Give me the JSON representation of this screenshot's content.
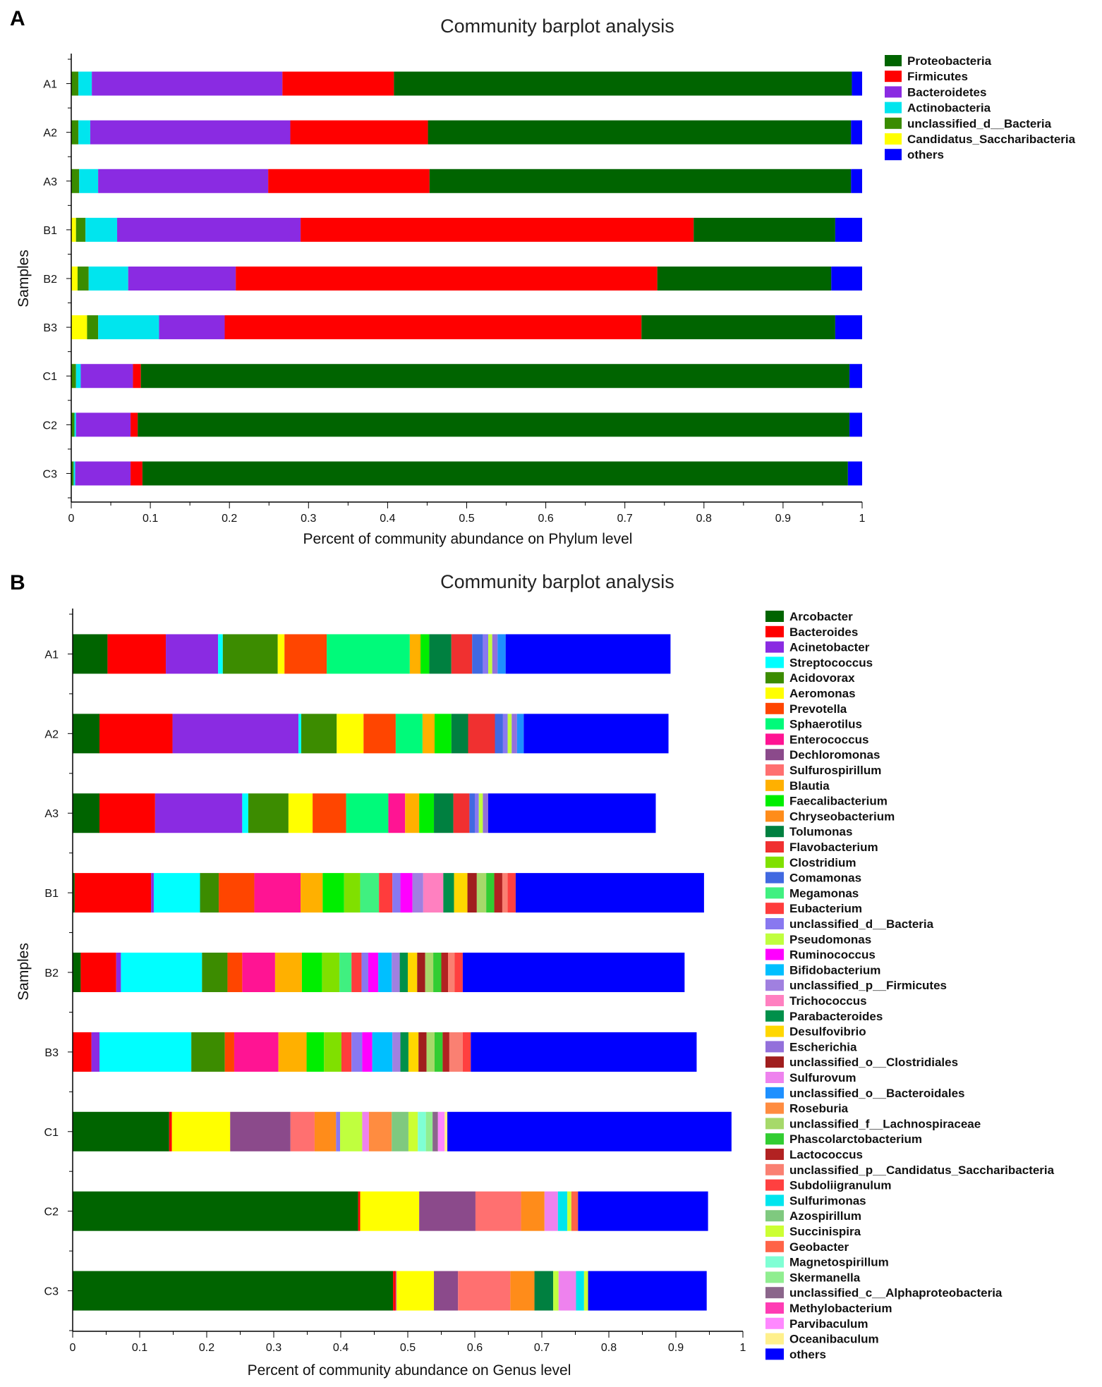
{
  "chart_data": [
    {
      "type": "bar",
      "orientation": "horizontal",
      "stacked": true,
      "panel": "A",
      "title": "Community barplot analysis",
      "xlabel": "Percent of community abundance on Phylum level",
      "ylabel": "Samples",
      "xlim": [
        0,
        1
      ],
      "xticks": [
        "0",
        "0.1",
        "0.2",
        "0.3",
        "0.4",
        "0.5",
        "0.6",
        "0.7",
        "0.8",
        "0.9",
        "1"
      ],
      "categories": [
        "A1",
        "A2",
        "A3",
        "B1",
        "B2",
        "B3",
        "C1",
        "C2",
        "C3"
      ],
      "series": [
        {
          "name": "Candidatus_Saccharibacteria",
          "color": "#FFFF00",
          "values": [
            0.0,
            0.0,
            0.0,
            0.006,
            0.008,
            0.02,
            0.0,
            0.0,
            0.0
          ]
        },
        {
          "name": "unclassified_d__Bacteria",
          "color": "#3A8C00",
          "values": [
            0.009,
            0.009,
            0.01,
            0.012,
            0.014,
            0.014,
            0.006,
            0.004,
            0.003
          ]
        },
        {
          "name": "Actinobacteria",
          "color": "#00E5EE",
          "values": [
            0.017,
            0.015,
            0.024,
            0.04,
            0.05,
            0.077,
            0.006,
            0.002,
            0.002
          ]
        },
        {
          "name": "Bacteroidetes",
          "color": "#8A2BE2",
          "values": [
            0.241,
            0.253,
            0.215,
            0.232,
            0.136,
            0.083,
            0.066,
            0.069,
            0.07
          ]
        },
        {
          "name": "Firmicutes",
          "color": "#FF0000",
          "values": [
            0.141,
            0.174,
            0.204,
            0.497,
            0.533,
            0.527,
            0.01,
            0.009,
            0.015
          ]
        },
        {
          "name": "Proteobacteria",
          "color": "#006400",
          "values": [
            0.579,
            0.535,
            0.533,
            0.179,
            0.22,
            0.245,
            0.896,
            0.9,
            0.892
          ]
        },
        {
          "name": "others",
          "color": "#0000FF",
          "values": [
            0.013,
            0.014,
            0.014,
            0.034,
            0.039,
            0.034,
            0.016,
            0.016,
            0.018
          ]
        }
      ],
      "legend": [
        "Proteobacteria",
        "Firmicutes",
        "Bacteroidetes",
        "Actinobacteria",
        "unclassified_d__Bacteria",
        "Candidatus_Saccharibacteria",
        "others"
      ],
      "legend_position": "right"
    },
    {
      "type": "bar",
      "orientation": "horizontal",
      "stacked": true,
      "panel": "B",
      "title": "Community barplot analysis",
      "xlabel": "Percent of community abundance on Genus level",
      "ylabel": "Samples",
      "xlim": [
        0,
        1
      ],
      "xticks": [
        "0",
        "0.1",
        "0.2",
        "0.3",
        "0.4",
        "0.5",
        "0.6",
        "0.7",
        "0.8",
        "0.9",
        "1"
      ],
      "categories": [
        "A1",
        "A2",
        "A3",
        "B1",
        "B2",
        "B3",
        "C1",
        "C2",
        "C3"
      ],
      "series": [
        {
          "name": "Arcobacter",
          "color": "#006400",
          "values": [
            0.052,
            0.04,
            0.04,
            0.003,
            0.012,
            0.0,
            0.144,
            0.426,
            0.478
          ]
        },
        {
          "name": "Bacteroides",
          "color": "#FF0000",
          "values": [
            0.087,
            0.109,
            0.083,
            0.114,
            0.053,
            0.028,
            0.004,
            0.003,
            0.004
          ]
        },
        {
          "name": "Acinetobacter",
          "color": "#8A2BE2",
          "values": [
            0.078,
            0.188,
            0.13,
            0.004,
            0.007,
            0.012,
            0.0,
            0.0,
            0.001
          ]
        },
        {
          "name": "Streptococcus",
          "color": "#00FFFF",
          "values": [
            0.007,
            0.004,
            0.009,
            0.069,
            0.121,
            0.137,
            0.0,
            0.0,
            0.0
          ]
        },
        {
          "name": "Acidovorax",
          "color": "#3C8C00",
          "values": [
            0.082,
            0.053,
            0.06,
            0.028,
            0.038,
            0.05,
            0.0,
            0.0,
            0.0
          ]
        },
        {
          "name": "Aeromonas",
          "color": "#FFFF00",
          "values": [
            0.01,
            0.04,
            0.036,
            0.0,
            0.0,
            0.0,
            0.087,
            0.088,
            0.056
          ]
        },
        {
          "name": "Prevotella",
          "color": "#FF4500",
          "values": [
            0.063,
            0.048,
            0.05,
            0.053,
            0.022,
            0.014,
            0.0,
            0.0,
            0.0
          ]
        },
        {
          "name": "Sphaerotilus",
          "color": "#00FA7A",
          "values": [
            0.124,
            0.04,
            0.063,
            0.0,
            0.0,
            0.0,
            0.0,
            0.0,
            0.0
          ]
        },
        {
          "name": "Enterococcus",
          "color": "#FF1493",
          "values": [
            0.0,
            0.0,
            0.025,
            0.069,
            0.049,
            0.066,
            0.0,
            0.0,
            0.0
          ]
        },
        {
          "name": "Dechloromonas",
          "color": "#8B4A8B",
          "values": [
            0.0,
            0.0,
            0.0,
            0.0,
            0.0,
            0.0,
            0.09,
            0.084,
            0.036
          ]
        },
        {
          "name": "Sulfurospirillum",
          "color": "#FF7070",
          "values": [
            0.0,
            0.0,
            0.0,
            0.0,
            0.0,
            0.0,
            0.036,
            0.068,
            0.078
          ]
        },
        {
          "name": "Blautia",
          "color": "#FFB000",
          "values": [
            0.016,
            0.018,
            0.021,
            0.033,
            0.04,
            0.042,
            0.0,
            0.0,
            0.0
          ]
        },
        {
          "name": "Faecalibacterium",
          "color": "#00EE00",
          "values": [
            0.013,
            0.025,
            0.022,
            0.032,
            0.03,
            0.026,
            0.0,
            0.0,
            0.0
          ]
        },
        {
          "name": "Chryseobacterium",
          "color": "#FF8C1A",
          "values": [
            0.0,
            0.0,
            0.0,
            0.0,
            0.0,
            0.0,
            0.032,
            0.035,
            0.036
          ]
        },
        {
          "name": "Tolumonas",
          "color": "#008040",
          "values": [
            0.033,
            0.025,
            0.029,
            0.0,
            0.0,
            0.0,
            0.0,
            0.0,
            0.028
          ]
        },
        {
          "name": "Flavobacterium",
          "color": "#F03030",
          "values": [
            0.031,
            0.04,
            0.024,
            0.0,
            0.0,
            0.0,
            0.0,
            0.0,
            0.0
          ]
        },
        {
          "name": "Clostridium",
          "color": "#80E000",
          "values": [
            0.0,
            0.0,
            0.0,
            0.024,
            0.026,
            0.026,
            0.0,
            0.0,
            0.0
          ]
        },
        {
          "name": "Comamonas",
          "color": "#4169E1",
          "values": [
            0.016,
            0.012,
            0.008,
            0.0,
            0.0,
            0.0,
            0.0,
            0.0,
            0.0
          ]
        },
        {
          "name": "Megamonas",
          "color": "#40F080",
          "values": [
            0.0,
            0.0,
            0.0,
            0.028,
            0.018,
            0.0,
            0.0,
            0.0,
            0.0
          ]
        },
        {
          "name": "Eubacterium",
          "color": "#FF3C3C",
          "values": [
            0.0,
            0.0,
            0.0,
            0.02,
            0.015,
            0.015,
            0.0,
            0.0,
            0.0
          ]
        },
        {
          "name": "unclassified_d__Bacteria",
          "color": "#8878F0",
          "values": [
            0.008,
            0.007,
            0.006,
            0.012,
            0.01,
            0.016,
            0.006,
            0.0,
            0.0
          ]
        },
        {
          "name": "Pseudomonas",
          "color": "#C0FF3E",
          "values": [
            0.006,
            0.006,
            0.006,
            0.0,
            0.0,
            0.0,
            0.033,
            0.0,
            0.008
          ]
        },
        {
          "name": "Ruminococcus",
          "color": "#FF00FF",
          "values": [
            0.0,
            0.0,
            0.0,
            0.018,
            0.015,
            0.015,
            0.0,
            0.0,
            0.0
          ]
        },
        {
          "name": "Bifidobacterium",
          "color": "#00BFFF",
          "values": [
            0.0,
            0.0,
            0.0,
            0.0,
            0.02,
            0.03,
            0.0,
            0.0,
            0.0
          ]
        },
        {
          "name": "unclassified_p__Firmicutes",
          "color": "#A080E0",
          "values": [
            0.0,
            0.0,
            0.0,
            0.016,
            0.012,
            0.012,
            0.0,
            0.0,
            0.0
          ]
        },
        {
          "name": "Trichococcus",
          "color": "#FF80C0",
          "values": [
            0.0,
            0.0,
            0.0,
            0.03,
            0.0,
            0.0,
            0.0,
            0.0,
            0.0
          ]
        },
        {
          "name": "Parabacteroides",
          "color": "#00904A",
          "values": [
            0.0,
            0.0,
            0.0,
            0.016,
            0.012,
            0.012,
            0.0,
            0.0,
            0.0
          ]
        },
        {
          "name": "Desulfovibrio",
          "color": "#FFD700",
          "values": [
            0.0,
            0.0,
            0.0,
            0.02,
            0.014,
            0.015,
            0.0,
            0.0,
            0.0
          ]
        },
        {
          "name": "Escherichia",
          "color": "#9370DB",
          "values": [
            0.008,
            0.008,
            0.008,
            0.0,
            0.0,
            0.0,
            0.0,
            0.0,
            0.0
          ]
        },
        {
          "name": "unclassified_o__Clostridiales",
          "color": "#A01E1E",
          "values": [
            0.0,
            0.0,
            0.0,
            0.014,
            0.012,
            0.012,
            0.0,
            0.0,
            0.0
          ]
        },
        {
          "name": "Sulfurovum",
          "color": "#EE82EE",
          "values": [
            0.0,
            0.0,
            0.0,
            0.0,
            0.0,
            0.0,
            0.01,
            0.02,
            0.026
          ]
        },
        {
          "name": "unclassified_o__Bacteroidales",
          "color": "#1E90FF",
          "values": [
            0.012,
            0.01,
            0.0,
            0.0,
            0.0,
            0.0,
            0.0,
            0.0,
            0.0
          ]
        },
        {
          "name": "Roseburia",
          "color": "#FF8C40",
          "values": [
            0.0,
            0.0,
            0.0,
            0.0,
            0.0,
            0.0,
            0.034,
            0.0,
            0.0
          ]
        },
        {
          "name": "unclassified_f__Lachnospiraceae",
          "color": "#A6D96A",
          "values": [
            0.0,
            0.0,
            0.0,
            0.014,
            0.012,
            0.012,
            0.0,
            0.0,
            0.0
          ]
        },
        {
          "name": "Phascolarctobacterium",
          "color": "#32CD32",
          "values": [
            0.0,
            0.0,
            0.0,
            0.012,
            0.012,
            0.012,
            0.0,
            0.0,
            0.0
          ]
        },
        {
          "name": "Lactococcus",
          "color": "#B22222",
          "values": [
            0.0,
            0.0,
            0.0,
            0.012,
            0.01,
            0.01,
            0.0,
            0.0,
            0.0
          ]
        },
        {
          "name": "unclassified_p__Candidatus_Saccharibacteria",
          "color": "#FA8072",
          "values": [
            0.0,
            0.0,
            0.0,
            0.008,
            0.01,
            0.02,
            0.0,
            0.0,
            0.0
          ]
        },
        {
          "name": "Subdoliigranulum",
          "color": "#FF4040",
          "values": [
            0.0,
            0.0,
            0.0,
            0.012,
            0.012,
            0.012,
            0.0,
            0.0,
            0.0
          ]
        },
        {
          "name": "Sulfurimonas",
          "color": "#00E5EE",
          "values": [
            0.0,
            0.0,
            0.0,
            0.0,
            0.0,
            0.0,
            0.0,
            0.014,
            0.012
          ]
        },
        {
          "name": "Azospirillum",
          "color": "#7FC97F",
          "values": [
            0.0,
            0.0,
            0.0,
            0.0,
            0.0,
            0.0,
            0.025,
            0.0,
            0.0
          ]
        },
        {
          "name": "Succinispira",
          "color": "#CCFF33",
          "values": [
            0.0,
            0.0,
            0.0,
            0.0,
            0.0,
            0.0,
            0.014,
            0.006,
            0.006
          ]
        },
        {
          "name": "Geobacter",
          "color": "#FF6347",
          "values": [
            0.0,
            0.0,
            0.0,
            0.0,
            0.0,
            0.0,
            0.0,
            0.01,
            0.0
          ]
        },
        {
          "name": "Magnetospirillum",
          "color": "#7FFFD4",
          "values": [
            0.0,
            0.0,
            0.0,
            0.0,
            0.0,
            0.0,
            0.012,
            0.0,
            0.0
          ]
        },
        {
          "name": "Skermanella",
          "color": "#90EE90",
          "values": [
            0.0,
            0.0,
            0.0,
            0.0,
            0.0,
            0.0,
            0.01,
            0.0,
            0.0
          ]
        },
        {
          "name": "unclassified_c__Alphaproteobacteria",
          "color": "#8B668B",
          "values": [
            0.0,
            0.0,
            0.0,
            0.0,
            0.0,
            0.0,
            0.008,
            0.0,
            0.0
          ]
        },
        {
          "name": "Methylobacterium",
          "color": "#FF3CB4",
          "values": [
            0.0,
            0.0,
            0.0,
            0.0,
            0.0,
            0.0,
            0.0,
            0.0,
            0.0
          ]
        },
        {
          "name": "Parvibaculum",
          "color": "#FF88FF",
          "values": [
            0.0,
            0.0,
            0.0,
            0.0,
            0.0,
            0.0,
            0.01,
            0.0,
            0.0
          ]
        },
        {
          "name": "Oceanibaculum",
          "color": "#FFF08C",
          "values": [
            0.0,
            0.0,
            0.0,
            0.0,
            0.0,
            0.0,
            0.004,
            0.0,
            0.0
          ]
        },
        {
          "name": "others",
          "color": "#0000FF",
          "values": [
            0.246,
            0.216,
            0.25,
            0.281,
            0.331,
            0.337,
            0.424,
            0.194,
            0.177
          ]
        }
      ],
      "legend_position": "right"
    }
  ]
}
